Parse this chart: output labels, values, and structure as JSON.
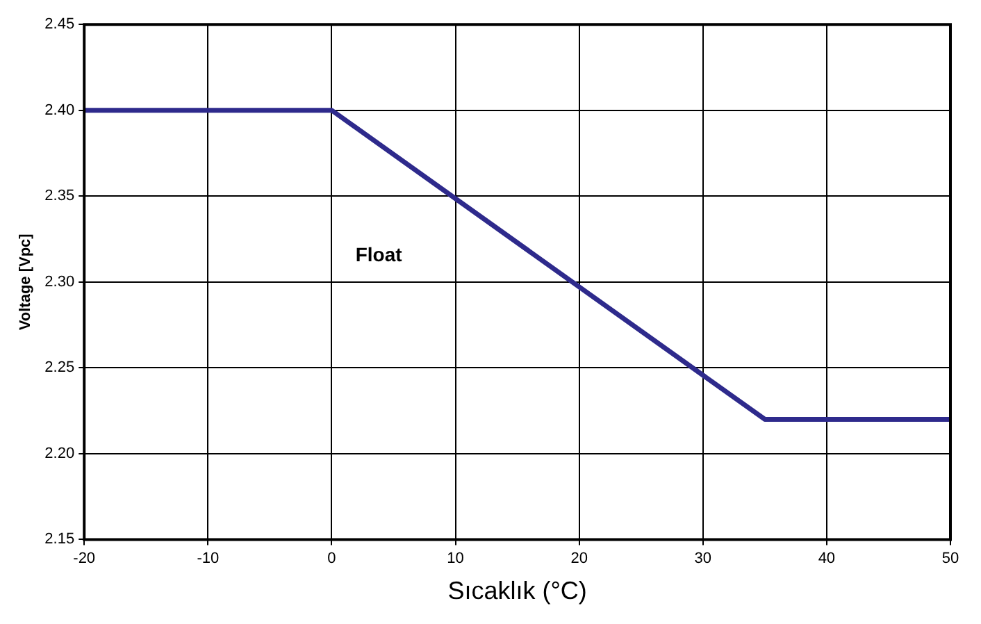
{
  "chart_data": {
    "type": "line",
    "xlabel": "Sıcaklık (°C)",
    "ylabel": "Voltage [Vpc]",
    "annotations": [
      "Float"
    ],
    "x": [
      -20,
      0,
      35,
      50
    ],
    "series": [
      {
        "color": "#2e2a8c",
        "values": [
          2.4,
          2.4,
          2.22,
          2.22
        ]
      }
    ],
    "xlim": [
      -20,
      50
    ],
    "xticks": [
      -20,
      -10,
      0,
      10,
      20,
      30,
      40,
      50
    ],
    "ylim": [
      2.15,
      2.45
    ],
    "yticks": [
      {
        "value": 2.15,
        "label": "2.15"
      },
      {
        "value": 2.2,
        "label": "2.20"
      },
      {
        "value": 2.25,
        "label": "2.25"
      },
      {
        "value": 2.3,
        "label": "2.30"
      },
      {
        "value": 2.35,
        "label": "2.35"
      },
      {
        "value": 2.4,
        "label": "2.40"
      },
      {
        "value": 2.45,
        "label": "2.45"
      }
    ],
    "grid": true,
    "legend": false,
    "marker": "none",
    "line_style": "solid"
  }
}
